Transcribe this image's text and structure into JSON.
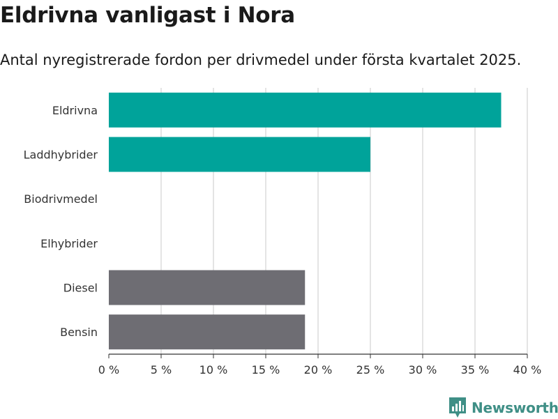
{
  "chart_data": {
    "type": "bar",
    "orientation": "horizontal",
    "title": "Eldrivna vanligast i Nora",
    "subtitle": "Antal nyregistrerade fordon per drivmedel under första kvartalet 2025.",
    "categories": [
      "Eldrivna",
      "Laddhybrider",
      "Biodrivmedel",
      "Elhybrider",
      "Diesel",
      "Bensin"
    ],
    "values": [
      37.5,
      25,
      0,
      0,
      18.75,
      18.75
    ],
    "bar_colors": [
      "#00a39a",
      "#00a39a",
      "#00a39a",
      "#00a39a",
      "#6e6d73",
      "#6e6d73"
    ],
    "xlim": [
      0,
      40
    ],
    "xticks": [
      0,
      5,
      10,
      15,
      20,
      25,
      30,
      35,
      40
    ],
    "xtick_labels": [
      "0 %",
      "5 %",
      "10 %",
      "15 %",
      "20 %",
      "25 %",
      "30 %",
      "35 %",
      "40 %"
    ],
    "grid": true
  },
  "brand": {
    "name": "Newsworthy",
    "icon": "newsworthy-logo-icon",
    "color": "#3f8f86"
  }
}
